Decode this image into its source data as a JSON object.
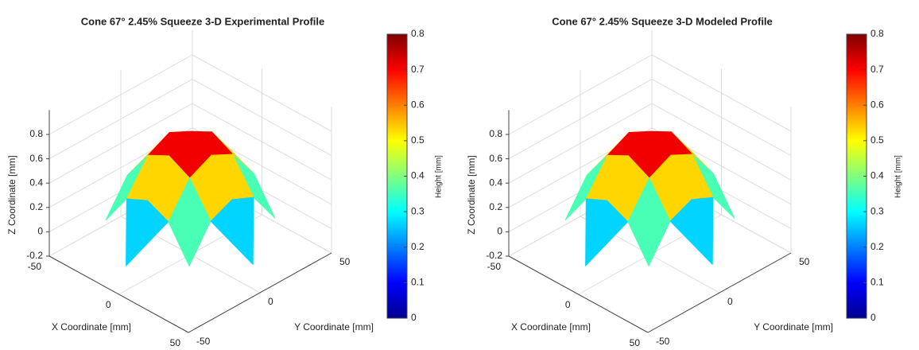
{
  "chart_data": [
    {
      "type": "surface",
      "title": "Cone 67° 2.45% Squeeze 3-D Experimental Profile",
      "x_label": "X Coordinate [mm]",
      "y_label": "Y Coordinate [mm]",
      "z_label": "Z Coordinate [mm]",
      "colorbar_label": "Height [mm]",
      "x": [
        -45,
        -30,
        -15,
        0,
        15,
        30,
        45
      ],
      "y": [
        -45,
        -30,
        -15,
        0,
        15,
        30,
        45
      ],
      "z": [
        [
          null,
          null,
          null,
          0,
          null,
          null,
          null
        ],
        [
          null,
          0.09,
          0.36,
          0.44,
          0.36,
          0.09,
          null
        ],
        [
          null,
          0.36,
          0.62,
          0.71,
          0.62,
          0.36,
          null
        ],
        [
          0,
          0.44,
          0.71,
          0.8,
          0.71,
          0.44,
          0
        ],
        [
          null,
          0.36,
          0.62,
          0.71,
          0.62,
          0.36,
          null
        ],
        [
          null,
          0.09,
          0.36,
          0.44,
          0.36,
          0.09,
          null
        ],
        [
          null,
          null,
          null,
          0,
          null,
          null,
          null
        ]
      ],
      "xlim": [
        -50,
        50
      ],
      "xticks": [
        -50,
        0,
        50
      ],
      "ylim": [
        -50,
        50
      ],
      "yticks": [
        -50,
        0,
        50
      ],
      "zlim": [
        -0.2,
        1
      ],
      "zticks": [
        -0.2,
        0,
        0.2,
        0.4,
        0.6,
        0.8
      ],
      "clim": [
        0,
        0.8
      ],
      "cticks": [
        0,
        0.1,
        0.2,
        0.3,
        0.4,
        0.5,
        0.6,
        0.7,
        0.8
      ],
      "colormap": "jet",
      "grid": true
    },
    {
      "type": "surface",
      "title": "Cone 67° 2.45% Squeeze 3-D Modeled Profile",
      "x_label": "X Coordinate [mm]",
      "y_label": "Y Coordinate [mm]",
      "z_label": "Z Coordinate [mm]",
      "colorbar_label": "Height [mm]",
      "x": [
        -45,
        -30,
        -15,
        0,
        15,
        30,
        45
      ],
      "y": [
        -45,
        -30,
        -15,
        0,
        15,
        30,
        45
      ],
      "z": [
        [
          null,
          null,
          null,
          0,
          null,
          null,
          null
        ],
        [
          null,
          0.09,
          0.36,
          0.44,
          0.36,
          0.09,
          null
        ],
        [
          null,
          0.36,
          0.62,
          0.71,
          0.62,
          0.36,
          null
        ],
        [
          0,
          0.44,
          0.71,
          0.8,
          0.71,
          0.44,
          0
        ],
        [
          null,
          0.36,
          0.62,
          0.71,
          0.62,
          0.36,
          null
        ],
        [
          null,
          0.09,
          0.36,
          0.44,
          0.36,
          0.09,
          null
        ],
        [
          null,
          null,
          null,
          0,
          null,
          null,
          null
        ]
      ],
      "xlim": [
        -50,
        50
      ],
      "xticks": [
        -50,
        0,
        50
      ],
      "ylim": [
        -50,
        50
      ],
      "yticks": [
        -50,
        0,
        50
      ],
      "zlim": [
        -0.2,
        1
      ],
      "zticks": [
        -0.2,
        0,
        0.2,
        0.4,
        0.6,
        0.8
      ],
      "clim": [
        0,
        0.8
      ],
      "cticks": [
        0,
        0.1,
        0.2,
        0.3,
        0.4,
        0.5,
        0.6,
        0.7,
        0.8
      ],
      "colormap": "jet",
      "grid": true
    }
  ]
}
